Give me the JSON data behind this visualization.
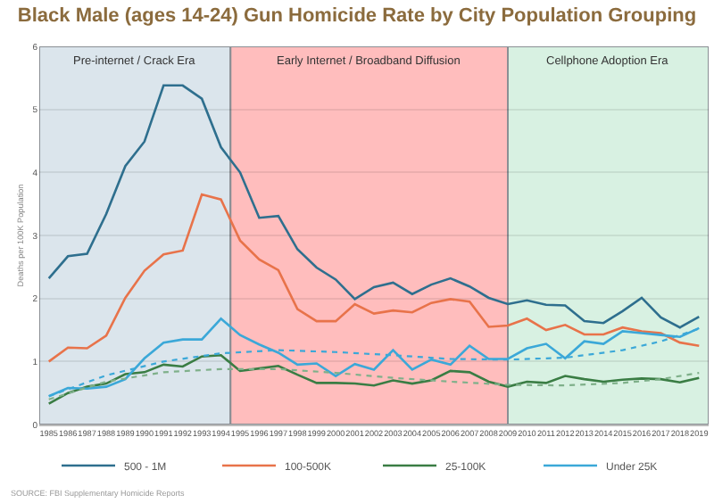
{
  "chart_data": {
    "type": "line",
    "title": "Black Male (ages 14-24) Gun Homicide Rate by City Population Grouping",
    "ylabel": "Deaths per 100K Population",
    "x": [
      1985,
      1986,
      1987,
      1988,
      1989,
      1990,
      1991,
      1992,
      1993,
      1994,
      1995,
      1996,
      1997,
      1998,
      1999,
      2000,
      2001,
      2002,
      2003,
      2004,
      2005,
      2006,
      2007,
      2008,
      2009,
      2010,
      2011,
      2012,
      2013,
      2014,
      2015,
      2016,
      2017,
      2018,
      2019
    ],
    "xlim": [
      1984.5,
      2019.5
    ],
    "xticks": [
      1985,
      1986,
      1987,
      1988,
      1989,
      1990,
      1991,
      1992,
      1993,
      1994,
      1995,
      1996,
      1997,
      1998,
      1999,
      2000,
      2001,
      2002,
      2003,
      2004,
      2005,
      2006,
      2007,
      2008,
      2009,
      2010,
      2011,
      2012,
      2013,
      2014,
      2015,
      2016,
      2017,
      2018,
      2019
    ],
    "ylim": [
      0,
      6
    ],
    "yticks": [
      0,
      1,
      2,
      3,
      4,
      5,
      6
    ],
    "grid": "y",
    "legend": "bottom",
    "line_style": "solid",
    "series": [
      {
        "name": "500 - 1M",
        "color": "#2e6f8e",
        "values": [
          2.32,
          2.67,
          2.71,
          3.34,
          4.1,
          4.49,
          5.38,
          5.38,
          5.17,
          4.4,
          4.0,
          3.28,
          3.31,
          2.78,
          2.49,
          2.3,
          1.99,
          2.18,
          2.25,
          2.07,
          2.22,
          2.32,
          2.19,
          2.01,
          1.91,
          1.97,
          1.9,
          1.89,
          1.64,
          1.61,
          1.8,
          2.01,
          1.7,
          1.54,
          1.71
        ]
      },
      {
        "name": "100-500K",
        "color": "#e8734a",
        "values": [
          1.0,
          1.22,
          1.21,
          1.41,
          2.01,
          2.44,
          2.7,
          2.76,
          3.65,
          3.57,
          2.92,
          2.62,
          2.45,
          1.83,
          1.64,
          1.64,
          1.91,
          1.76,
          1.81,
          1.78,
          1.93,
          1.99,
          1.95,
          1.55,
          1.57,
          1.68,
          1.5,
          1.58,
          1.43,
          1.43,
          1.54,
          1.48,
          1.45,
          1.3,
          1.25
        ]
      },
      {
        "name": "25-100K",
        "color": "#3a7d44",
        "values": [
          0.33,
          0.5,
          0.6,
          0.65,
          0.8,
          0.83,
          0.95,
          0.92,
          1.08,
          1.1,
          0.85,
          0.89,
          0.93,
          0.79,
          0.66,
          0.66,
          0.65,
          0.62,
          0.7,
          0.65,
          0.7,
          0.85,
          0.83,
          0.68,
          0.6,
          0.68,
          0.66,
          0.77,
          0.72,
          0.68,
          0.71,
          0.73,
          0.72,
          0.67,
          0.74
        ]
      },
      {
        "name": "Under 25K",
        "color": "#3ba8d8",
        "values": [
          0.45,
          0.58,
          0.57,
          0.6,
          0.72,
          1.05,
          1.3,
          1.35,
          1.35,
          1.68,
          1.42,
          1.27,
          1.14,
          0.95,
          0.97,
          0.77,
          0.96,
          0.87,
          1.18,
          0.87,
          1.03,
          0.95,
          1.25,
          1.04,
          1.04,
          1.21,
          1.28,
          1.05,
          1.32,
          1.28,
          1.48,
          1.45,
          1.42,
          1.39,
          1.53
        ]
      },
      {
        "type": "line",
        "line_style": "dotted",
        "color": "#3ba8d8",
        "x": [
          1985,
          1988,
          1991,
          1994,
          1997,
          2000,
          2003,
          2006,
          2009,
          2012,
          2015,
          2017,
          2019
        ],
        "values": [
          0.45,
          0.78,
          1.0,
          1.13,
          1.18,
          1.15,
          1.1,
          1.04,
          1.03,
          1.06,
          1.18,
          1.32,
          1.52
        ]
      },
      {
        "type": "line",
        "line_style": "dotted",
        "color": "#7fb08a",
        "x": [
          1985,
          1988,
          1991,
          1994,
          1997,
          2000,
          2003,
          2006,
          2009,
          2012,
          2015,
          2017,
          2019
        ],
        "values": [
          0.4,
          0.68,
          0.83,
          0.88,
          0.88,
          0.82,
          0.74,
          0.68,
          0.63,
          0.62,
          0.66,
          0.72,
          0.82
        ]
      }
    ],
    "bands": [
      {
        "axis": "x",
        "from": 1984.5,
        "to": 1994.5,
        "label": "Pre-internet / Crack Era",
        "color": "#dbe5ec"
      },
      {
        "axis": "x",
        "from": 1994.5,
        "to": 2009,
        "label": "Early Internet / Broadband Diffusion",
        "color": "#ffbdbd"
      },
      {
        "axis": "x",
        "from": 2009,
        "to": 2019.5,
        "label": "Cellphone Adoption Era",
        "color": "#d8f1e2"
      }
    ],
    "annotations": [
      "SOURCE: FBI Supplementary Homicide Reports"
    ]
  }
}
